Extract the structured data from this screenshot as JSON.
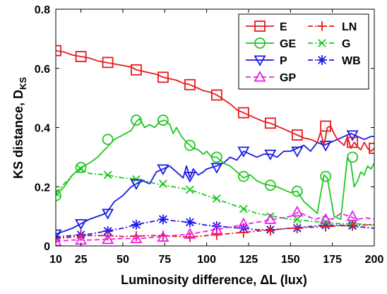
{
  "chart_data": {
    "type": "line",
    "title": "",
    "xlabel": "Luminosity difference, ΔL (lux)",
    "ylabel": "KS distance, D",
    "ylabel_sub": "KS",
    "xlim": [
      10,
      200
    ],
    "ylim": [
      0,
      0.8
    ],
    "xticks": [
      10,
      25,
      50,
      75,
      100,
      125,
      150,
      175,
      200
    ],
    "xtick_labels": [
      "10",
      "25",
      "50",
      "75",
      "100",
      "125",
      "150",
      "175",
      "200"
    ],
    "yticks": [
      0,
      0.2,
      0.4,
      0.6,
      0.8
    ],
    "ytick_labels": [
      "0",
      "0.2",
      "0.4",
      "0.6",
      "0.8"
    ],
    "grid": false,
    "legend_position": "top-right",
    "series": [
      {
        "name": "E",
        "color": "#e8191c",
        "dash": "solid",
        "marker": "square",
        "x": [
          10,
          15,
          20,
          25,
          30,
          35,
          40,
          45,
          50,
          55,
          58,
          62,
          66,
          70,
          74,
          78,
          82,
          86,
          90,
          94,
          98,
          102,
          106,
          110,
          114,
          118,
          122,
          126,
          130,
          134,
          138,
          142,
          146,
          150,
          154,
          158,
          162,
          166,
          168,
          170,
          172,
          174,
          176,
          178,
          180,
          182,
          184,
          186,
          188,
          190,
          192,
          194,
          196,
          198,
          200
        ],
        "y": [
          0.66,
          0.655,
          0.645,
          0.64,
          0.635,
          0.625,
          0.62,
          0.615,
          0.61,
          0.605,
          0.595,
          0.59,
          0.585,
          0.58,
          0.57,
          0.565,
          0.56,
          0.55,
          0.545,
          0.535,
          0.525,
          0.52,
          0.51,
          0.495,
          0.48,
          0.46,
          0.45,
          0.44,
          0.43,
          0.42,
          0.415,
          0.405,
          0.395,
          0.385,
          0.375,
          0.365,
          0.36,
          0.35,
          0.385,
          0.34,
          0.4,
          0.405,
          0.38,
          0.36,
          0.35,
          0.34,
          0.37,
          0.33,
          0.35,
          0.335,
          0.325,
          0.35,
          0.33,
          0.32,
          0.33
        ],
        "marker_x": [
          10,
          25,
          41,
          58,
          74,
          90,
          106,
          122,
          138,
          154,
          171,
          187,
          200
        ],
        "marker_y": [
          0.66,
          0.64,
          0.62,
          0.595,
          0.57,
          0.545,
          0.51,
          0.45,
          0.415,
          0.375,
          0.405,
          0.35,
          0.33
        ]
      },
      {
        "name": "GE",
        "color": "#1ec81e",
        "dash": "solid",
        "marker": "circle",
        "x": [
          10,
          15,
          20,
          25,
          30,
          35,
          40,
          45,
          50,
          55,
          58,
          60,
          63,
          66,
          69,
          72,
          75,
          78,
          80,
          82,
          85,
          88,
          90,
          92,
          95,
          98,
          100,
          103,
          106,
          110,
          114,
          118,
          122,
          126,
          130,
          134,
          138,
          142,
          146,
          150,
          154,
          158,
          162,
          166,
          170,
          172,
          176,
          180,
          184,
          186,
          188,
          190,
          192,
          194,
          196,
          198,
          200
        ],
        "y": [
          0.17,
          0.2,
          0.24,
          0.265,
          0.28,
          0.3,
          0.33,
          0.36,
          0.375,
          0.39,
          0.42,
          0.43,
          0.4,
          0.41,
          0.4,
          0.42,
          0.425,
          0.41,
          0.38,
          0.4,
          0.37,
          0.35,
          0.34,
          0.33,
          0.325,
          0.31,
          0.32,
          0.3,
          0.3,
          0.28,
          0.27,
          0.25,
          0.23,
          0.24,
          0.22,
          0.21,
          0.205,
          0.2,
          0.19,
          0.18,
          0.185,
          0.15,
          0.13,
          0.11,
          0.24,
          0.23,
          0.1,
          0.09,
          0.3,
          0.28,
          0.2,
          0.22,
          0.25,
          0.24,
          0.27,
          0.26,
          0.28
        ],
        "marker_x": [
          10,
          25,
          41,
          58,
          74,
          90,
          106,
          122,
          138,
          154,
          171,
          187
        ],
        "marker_y": [
          0.17,
          0.265,
          0.36,
          0.425,
          0.425,
          0.34,
          0.3,
          0.235,
          0.205,
          0.185,
          0.235,
          0.3
        ]
      },
      {
        "name": "P",
        "color": "#1a1ae6",
        "dash": "solid",
        "marker": "triangle-down",
        "x": [
          10,
          15,
          20,
          25,
          30,
          35,
          40,
          45,
          50,
          55,
          58,
          62,
          66,
          70,
          74,
          78,
          82,
          86,
          88,
          90,
          92,
          95,
          98,
          100,
          103,
          106,
          110,
          114,
          118,
          122,
          126,
          130,
          134,
          138,
          142,
          146,
          150,
          154,
          158,
          162,
          166,
          170,
          174,
          178,
          182,
          186,
          190,
          194,
          198,
          200
        ],
        "y": [
          0.04,
          0.05,
          0.06,
          0.075,
          0.09,
          0.1,
          0.11,
          0.15,
          0.17,
          0.2,
          0.21,
          0.22,
          0.21,
          0.25,
          0.26,
          0.27,
          0.25,
          0.23,
          0.27,
          0.23,
          0.26,
          0.24,
          0.25,
          0.26,
          0.265,
          0.27,
          0.28,
          0.3,
          0.29,
          0.32,
          0.31,
          0.3,
          0.31,
          0.31,
          0.3,
          0.32,
          0.32,
          0.33,
          0.34,
          0.32,
          0.35,
          0.34,
          0.35,
          0.36,
          0.37,
          0.38,
          0.37,
          0.36,
          0.37,
          0.37
        ],
        "marker_x": [
          10,
          25,
          41,
          58,
          74,
          90,
          106,
          122,
          138,
          154,
          171,
          187
        ],
        "marker_y": [
          0.04,
          0.075,
          0.11,
          0.21,
          0.26,
          0.235,
          0.265,
          0.32,
          0.31,
          0.32,
          0.34,
          0.375
        ]
      },
      {
        "name": "GP",
        "color": "#ec1cec",
        "dash": "dashed",
        "marker": "triangle-up",
        "x": [
          10,
          20,
          30,
          40,
          50,
          60,
          70,
          80,
          90,
          100,
          110,
          120,
          130,
          140,
          150,
          155,
          160,
          165,
          170,
          175,
          180,
          185,
          190,
          195,
          200
        ],
        "y": [
          0.015,
          0.02,
          0.02,
          0.022,
          0.025,
          0.025,
          0.03,
          0.035,
          0.04,
          0.05,
          0.06,
          0.07,
          0.08,
          0.09,
          0.1,
          0.115,
          0.1,
          0.09,
          0.1,
          0.09,
          0.11,
          0.1,
          0.09,
          0.095,
          0.09
        ],
        "marker_x": [
          10,
          25,
          41,
          58,
          74,
          90,
          106,
          122,
          138,
          154,
          171,
          187
        ],
        "marker_y": [
          0.015,
          0.02,
          0.022,
          0.025,
          0.03,
          0.04,
          0.055,
          0.075,
          0.09,
          0.115,
          0.09,
          0.1
        ]
      },
      {
        "name": "LN",
        "color": "#e8191c",
        "dash": "dashdot",
        "marker": "plus",
        "x": [
          10,
          20,
          30,
          40,
          50,
          60,
          70,
          80,
          90,
          100,
          110,
          120,
          130,
          140,
          150,
          160,
          170,
          180,
          190,
          200
        ],
        "y": [
          0.025,
          0.03,
          0.035,
          0.035,
          0.032,
          0.034,
          0.035,
          0.033,
          0.03,
          0.035,
          0.04,
          0.045,
          0.05,
          0.055,
          0.06,
          0.062,
          0.065,
          0.068,
          0.07,
          0.072
        ],
        "marker_x": [
          10,
          25,
          41,
          58,
          74,
          90,
          106,
          122,
          138,
          154,
          171,
          187
        ],
        "marker_y": [
          0.025,
          0.035,
          0.035,
          0.033,
          0.035,
          0.03,
          0.037,
          0.045,
          0.052,
          0.06,
          0.065,
          0.07
        ]
      },
      {
        "name": "G",
        "color": "#1ec81e",
        "dash": "dashdot",
        "marker": "x",
        "x": [
          10,
          20,
          25,
          30,
          40,
          50,
          60,
          70,
          80,
          90,
          100,
          110,
          120,
          130,
          140,
          150,
          160,
          170,
          180,
          190,
          200
        ],
        "y": [
          0.18,
          0.24,
          0.26,
          0.245,
          0.24,
          0.23,
          0.225,
          0.21,
          0.2,
          0.19,
          0.17,
          0.15,
          0.13,
          0.11,
          0.1,
          0.09,
          0.085,
          0.08,
          0.075,
          0.075,
          0.07
        ],
        "marker_x": [
          10,
          25,
          41,
          58,
          74,
          90,
          106,
          122,
          138,
          154,
          171,
          187
        ],
        "marker_y": [
          0.18,
          0.26,
          0.24,
          0.225,
          0.21,
          0.19,
          0.16,
          0.125,
          0.1,
          0.09,
          0.08,
          0.075
        ]
      },
      {
        "name": "WB",
        "color": "#1a1ae6",
        "dash": "dashdot",
        "marker": "asterisk",
        "x": [
          10,
          20,
          30,
          40,
          50,
          60,
          70,
          75,
          80,
          90,
          100,
          110,
          120,
          130,
          140,
          150,
          160,
          170,
          180,
          190,
          200
        ],
        "y": [
          0.03,
          0.035,
          0.04,
          0.05,
          0.06,
          0.075,
          0.085,
          0.09,
          0.085,
          0.08,
          0.07,
          0.065,
          0.06,
          0.055,
          0.055,
          0.06,
          0.065,
          0.07,
          0.07,
          0.065,
          0.06
        ],
        "marker_x": [
          10,
          25,
          41,
          58,
          74,
          90,
          106,
          122,
          138,
          154,
          171,
          187
        ],
        "marker_y": [
          0.03,
          0.038,
          0.05,
          0.072,
          0.09,
          0.08,
          0.067,
          0.06,
          0.055,
          0.06,
          0.07,
          0.068
        ]
      }
    ]
  }
}
